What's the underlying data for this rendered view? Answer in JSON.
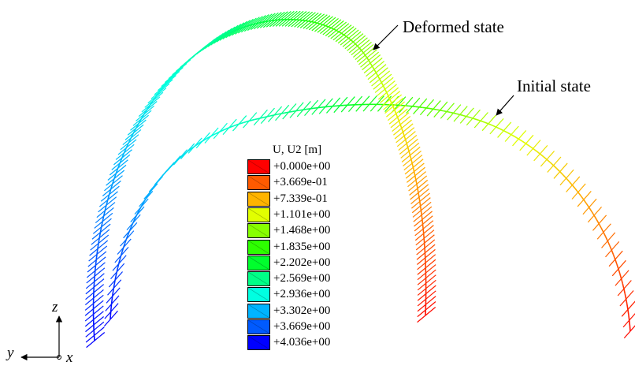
{
  "annotations": {
    "deformed": "Deformed state",
    "initial": "Initial state"
  },
  "legend": {
    "title": "U, U2 [m]",
    "entries": [
      {
        "label": "+0.000e+00",
        "color": "#ff0000"
      },
      {
        "label": "+3.669e-01",
        "color": "#ff5a00"
      },
      {
        "label": "+7.339e-01",
        "color": "#ffb400"
      },
      {
        "label": "+1.101e+00",
        "color": "#e1ff00"
      },
      {
        "label": "+1.468e+00",
        "color": "#87ff00"
      },
      {
        "label": "+1.835e+00",
        "color": "#2dff00"
      },
      {
        "label": "+2.202e+00",
        "color": "#00ff2d"
      },
      {
        "label": "+2.569e+00",
        "color": "#00ff87"
      },
      {
        "label": "+2.936e+00",
        "color": "#00ffe1"
      },
      {
        "label": "+3.302e+00",
        "color": "#00b4ff"
      },
      {
        "label": "+3.669e+00",
        "color": "#005aff"
      },
      {
        "label": "+4.036e+00",
        "color": "#0000ff"
      }
    ]
  },
  "triad": {
    "vertical": "z",
    "horizontal": "y",
    "out_of_plane": "x"
  }
}
